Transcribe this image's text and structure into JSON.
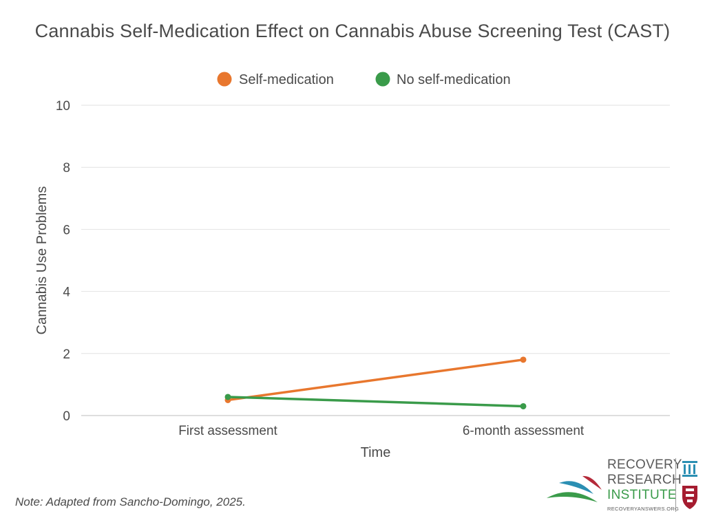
{
  "chart_data": {
    "type": "line",
    "title": "Cannabis Self-Medication Effect on Cannabis Abuse Screening Test (CAST)",
    "xlabel": "Time",
    "ylabel": "Cannabis Use Problems",
    "categories": [
      "First assessment",
      "6-month assessment"
    ],
    "ylim": [
      0,
      10
    ],
    "yticks": [
      0,
      2,
      4,
      6,
      8,
      10
    ],
    "grid": true,
    "legend_position": "top-center",
    "series": [
      {
        "name": "Self-medication",
        "color": "#e8772e",
        "values": [
          0.5,
          1.8
        ]
      },
      {
        "name": "No self-medication",
        "color": "#3a9b4a",
        "values": [
          0.6,
          0.3
        ]
      }
    ]
  },
  "note": "Note: Adapted from Sancho-Domingo, 2025.",
  "logo": {
    "line1": "RECOVERY",
    "line2": "RESEARCH",
    "line3": "INSTITUTE",
    "url": "RECOVERYANSWERS.ORG"
  }
}
